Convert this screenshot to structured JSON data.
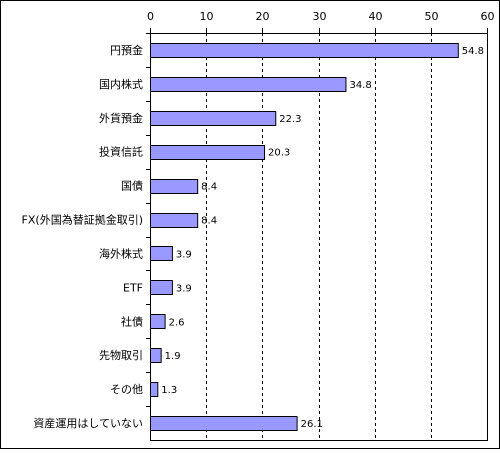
{
  "chart_data": {
    "type": "bar",
    "orientation": "horizontal",
    "x_axis_position": "top",
    "xlim": [
      0,
      60
    ],
    "x_ticks": [
      "0",
      "10",
      "20",
      "30",
      "40",
      "50",
      "60"
    ],
    "grid": "vertical dashed",
    "categories": [
      "円預金",
      "国内株式",
      "外貨預金",
      "投資信託",
      "国債",
      "FX(外国為替証拠金取引)",
      "海外株式",
      "ETF",
      "社債",
      "先物取引",
      "その他",
      "資産運用はしていない"
    ],
    "values": [
      54.8,
      34.8,
      22.3,
      20.3,
      8.4,
      8.4,
      3.9,
      3.9,
      2.6,
      1.9,
      1.3,
      26.1
    ],
    "value_labels": [
      "54.8",
      "34.8",
      "22.3",
      "20.3",
      "8.4",
      "8.4",
      "3.9",
      "3.9",
      "2.6",
      "1.9",
      "1.3",
      "26.1"
    ],
    "bar_color": "#9999ff",
    "bar_outline": "#000000"
  }
}
